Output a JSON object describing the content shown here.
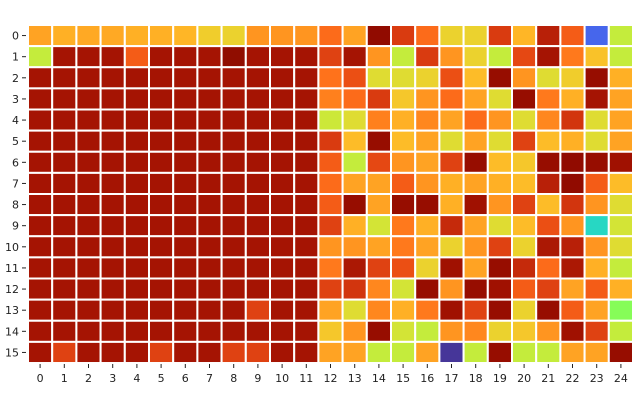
{
  "chart_data": {
    "type": "heatmap",
    "title": "",
    "xlabel": "",
    "ylabel": "",
    "x_categories": [
      "0",
      "1",
      "2",
      "3",
      "4",
      "5",
      "6",
      "7",
      "8",
      "9",
      "10",
      "11",
      "12",
      "13",
      "14",
      "15",
      "16",
      "17",
      "18",
      "19",
      "20",
      "21",
      "22",
      "23",
      "24"
    ],
    "y_categories": [
      "0",
      "1",
      "2",
      "3",
      "4",
      "5",
      "6",
      "7",
      "8",
      "9",
      "10",
      "11",
      "12",
      "13",
      "14",
      "15"
    ],
    "colormap": "turbo",
    "value_range": [
      0,
      1
    ],
    "values": [
      [
        0.7,
        0.68,
        0.69,
        0.69,
        0.68,
        0.68,
        0.67,
        0.63,
        0.62,
        0.72,
        0.72,
        0.72,
        0.78,
        0.7,
        0.98,
        0.85,
        0.78,
        0.62,
        0.62,
        0.85,
        0.67,
        0.9,
        0.8,
        0.12,
        0.56
      ],
      [
        0.56,
        0.93,
        0.93,
        0.93,
        0.8,
        0.93,
        0.93,
        0.93,
        1.0,
        0.93,
        0.93,
        0.93,
        0.84,
        0.93,
        0.72,
        0.56,
        0.85,
        0.72,
        0.62,
        0.56,
        0.83,
        0.93,
        0.76,
        0.65,
        0.56
      ],
      [
        0.93,
        0.93,
        0.93,
        0.93,
        0.93,
        0.93,
        0.93,
        0.93,
        0.93,
        0.93,
        0.93,
        0.93,
        0.77,
        0.82,
        0.6,
        0.6,
        0.62,
        0.82,
        0.66,
        0.96,
        0.72,
        0.6,
        0.63,
        0.96,
        0.68
      ],
      [
        0.93,
        0.93,
        0.93,
        0.93,
        0.93,
        0.93,
        0.93,
        0.93,
        0.93,
        0.93,
        0.93,
        0.93,
        0.75,
        0.78,
        0.85,
        0.64,
        0.72,
        0.78,
        0.7,
        0.6,
        0.96,
        0.76,
        0.68,
        0.93,
        0.7
      ],
      [
        0.93,
        0.93,
        0.93,
        0.93,
        0.93,
        0.93,
        0.93,
        0.93,
        0.93,
        0.93,
        0.93,
        0.93,
        0.57,
        0.6,
        0.75,
        0.68,
        0.74,
        0.7,
        0.78,
        0.72,
        0.6,
        0.74,
        0.86,
        0.6,
        0.7
      ],
      [
        0.93,
        0.93,
        0.93,
        0.93,
        0.93,
        0.93,
        0.93,
        0.93,
        0.93,
        0.93,
        0.93,
        0.93,
        0.85,
        0.66,
        0.96,
        0.66,
        0.7,
        0.6,
        0.7,
        0.6,
        0.84,
        0.66,
        0.68,
        0.6,
        0.7
      ],
      [
        0.93,
        0.93,
        0.93,
        0.93,
        0.93,
        0.93,
        0.93,
        0.93,
        0.93,
        0.93,
        0.93,
        0.93,
        0.8,
        0.56,
        0.83,
        0.72,
        0.7,
        0.84,
        0.96,
        0.66,
        0.64,
        0.96,
        0.98,
        0.96,
        0.94
      ],
      [
        0.93,
        0.93,
        0.93,
        0.93,
        0.93,
        0.93,
        0.93,
        0.93,
        0.93,
        0.93,
        0.93,
        0.93,
        0.78,
        0.7,
        0.7,
        0.8,
        0.72,
        0.68,
        0.7,
        0.68,
        0.66,
        0.9,
        0.98,
        0.8,
        0.66
      ],
      [
        0.93,
        0.93,
        0.93,
        0.93,
        0.93,
        0.93,
        0.93,
        0.93,
        0.93,
        0.93,
        0.93,
        0.93,
        0.8,
        0.96,
        0.7,
        0.96,
        0.96,
        0.68,
        0.94,
        0.72,
        0.84,
        0.66,
        0.86,
        0.72,
        0.6
      ],
      [
        0.93,
        0.93,
        0.93,
        0.93,
        0.93,
        0.93,
        0.93,
        0.93,
        0.93,
        0.93,
        0.93,
        0.93,
        0.84,
        0.68,
        0.58,
        0.76,
        0.68,
        0.88,
        0.7,
        0.6,
        0.66,
        0.82,
        0.72,
        0.3,
        0.58
      ],
      [
        0.93,
        0.93,
        0.93,
        0.93,
        0.93,
        0.93,
        0.93,
        0.93,
        0.93,
        0.93,
        0.93,
        0.93,
        0.72,
        0.72,
        0.7,
        0.76,
        0.7,
        0.62,
        0.72,
        0.84,
        0.62,
        0.92,
        0.9,
        0.72,
        0.6
      ],
      [
        0.93,
        0.93,
        0.93,
        0.93,
        0.93,
        0.93,
        0.93,
        0.93,
        0.93,
        0.93,
        0.93,
        0.93,
        0.76,
        0.92,
        0.84,
        0.82,
        0.62,
        0.94,
        0.7,
        0.96,
        0.88,
        0.78,
        0.92,
        0.68,
        0.56
      ],
      [
        0.93,
        0.93,
        0.93,
        0.93,
        0.93,
        0.93,
        0.93,
        0.93,
        0.93,
        0.93,
        0.93,
        0.93,
        0.84,
        0.86,
        0.74,
        0.58,
        0.96,
        0.72,
        0.96,
        0.94,
        0.8,
        0.84,
        0.7,
        0.8,
        0.68
      ],
      [
        0.93,
        0.93,
        0.93,
        0.93,
        0.93,
        0.93,
        0.93,
        0.93,
        0.93,
        0.84,
        0.93,
        0.93,
        0.7,
        0.6,
        0.74,
        0.68,
        0.76,
        0.94,
        0.84,
        0.96,
        0.62,
        0.96,
        0.8,
        0.7,
        0.48
      ],
      [
        0.93,
        0.93,
        0.93,
        0.93,
        0.93,
        0.93,
        0.93,
        0.93,
        0.93,
        0.93,
        0.93,
        0.93,
        0.64,
        0.72,
        0.96,
        0.58,
        0.56,
        0.72,
        0.74,
        0.62,
        0.64,
        0.72,
        0.94,
        0.84,
        0.56
      ],
      [
        0.93,
        0.84,
        0.93,
        0.93,
        0.93,
        0.84,
        0.93,
        0.93,
        0.84,
        0.84,
        0.93,
        0.93,
        0.7,
        0.7,
        0.56,
        0.56,
        0.7,
        0.05,
        0.56,
        0.96,
        0.56,
        0.56,
        0.7,
        0.7,
        0.96
      ]
    ]
  }
}
